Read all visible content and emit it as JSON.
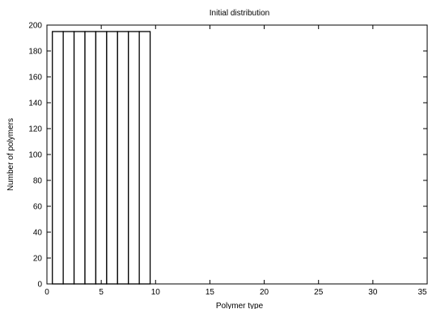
{
  "chart_data": {
    "type": "bar",
    "title": "Initial distribution",
    "xlabel": "Polymer type",
    "ylabel": "Number of polymers",
    "xlim": [
      0,
      35
    ],
    "ylim": [
      0,
      200
    ],
    "xticks": [
      0,
      5,
      10,
      15,
      20,
      25,
      30,
      35
    ],
    "yticks": [
      0,
      20,
      40,
      60,
      80,
      100,
      120,
      140,
      160,
      180,
      200
    ],
    "x": [
      1,
      2,
      3,
      4,
      5,
      6,
      7,
      8,
      9
    ],
    "values": [
      195,
      195,
      195,
      195,
      195,
      195,
      195,
      195,
      195
    ],
    "bar_width": 1,
    "bar_fill": "#ffffff",
    "bar_stroke": "#000000",
    "grid": false,
    "legend": "none"
  }
}
